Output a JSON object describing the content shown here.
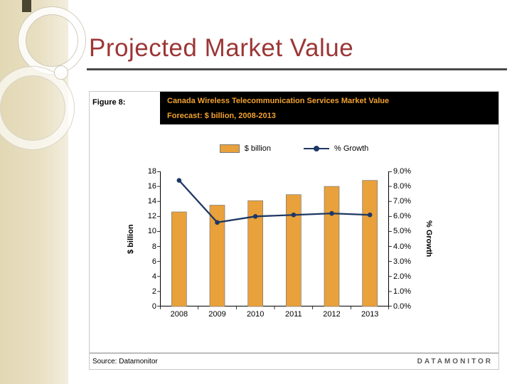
{
  "slide": {
    "title": "Projected Market Value"
  },
  "figure": {
    "label": "Figure 8:",
    "header_line1": "Canada Wireless Telecommunication Services Market Value",
    "header_line2": "Forecast: $ billion, 2008-2013",
    "source": "Source: Datamonitor",
    "brand": "DATAMONITOR"
  },
  "colors": {
    "title_text": "#9C3636",
    "header_bg": "#000000",
    "header_text": "#F2A230",
    "bar_fill": "#E9A13B",
    "line_stroke": "#1F3864",
    "sidebar_beige": "#E7DEC0"
  },
  "chart_data": {
    "type": "bar",
    "overlay": "line",
    "title": "Canada Wireless Telecommunication Services Market Value Forecast: $ billion, 2008-2013",
    "categories": [
      "2008",
      "2009",
      "2010",
      "2011",
      "2012",
      "2013"
    ],
    "series": [
      {
        "name": "$ billion",
        "kind": "bar",
        "axis": "left",
        "color": "#E9A13B",
        "values": [
          12.6,
          13.5,
          14.1,
          14.9,
          16.0,
          16.8
        ]
      },
      {
        "name": "% Growth",
        "kind": "line",
        "axis": "right",
        "color": "#1F3864",
        "values": [
          8.4,
          5.6,
          6.0,
          6.1,
          6.2,
          6.1
        ]
      }
    ],
    "left_axis": {
      "label": "$ billion",
      "min": 0,
      "max": 18,
      "step": 2
    },
    "right_axis": {
      "label": "% Growth",
      "min": 0,
      "max": 9,
      "step": 1,
      "format": "percent1"
    },
    "legend": [
      {
        "label": "$ billion",
        "swatch": "bar"
      },
      {
        "label": "% Growth",
        "swatch": "line"
      }
    ],
    "gridlines": false,
    "legend_position": "top"
  }
}
